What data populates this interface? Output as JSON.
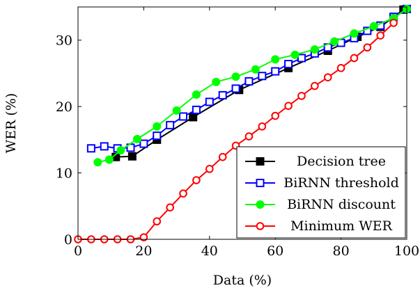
{
  "chart_data": {
    "type": "line",
    "title": "",
    "xlabel": "Data (%)",
    "ylabel": "WER (%)",
    "xlim": [
      0,
      100
    ],
    "ylim": [
      0,
      35
    ],
    "xticks": [
      0,
      20,
      40,
      60,
      80,
      100
    ],
    "yticks": [
      0,
      10,
      20,
      30
    ],
    "grid": false,
    "legend_position": "bottom-right",
    "series": [
      {
        "name": "Decision tree",
        "color": "#000000",
        "marker": "filled-square",
        "x": [
          11.5,
          16.5,
          24,
          35,
          49,
          64,
          76,
          85,
          92,
          96,
          99
        ],
        "y": [
          12.4,
          12.5,
          15.0,
          18.4,
          22.5,
          25.8,
          28.4,
          30.5,
          32.0,
          33.5,
          34.6
        ]
      },
      {
        "name": "BiRNN threshold",
        "color": "#0000ff",
        "marker": "open-square",
        "x": [
          4,
          8,
          12,
          16,
          20,
          24,
          28,
          32,
          36,
          40,
          44,
          48,
          52,
          56,
          60,
          64,
          68,
          72,
          76,
          80,
          84,
          88,
          92,
          96,
          100
        ],
        "y": [
          13.7,
          14.0,
          13.7,
          13.8,
          14.4,
          15.6,
          17.2,
          18.5,
          19.5,
          20.7,
          21.7,
          22.7,
          23.8,
          24.6,
          25.3,
          26.4,
          27.3,
          28.0,
          28.9,
          29.6,
          30.3,
          31.4,
          32.2,
          33.5,
          34.7
        ]
      },
      {
        "name": "BiRNN discount",
        "color": "#00ff00",
        "marker": "filled-circle",
        "x": [
          6,
          9.5,
          13,
          18,
          24,
          30,
          36,
          42,
          48,
          54,
          60,
          66,
          72,
          78,
          84,
          90,
          96,
          100
        ],
        "y": [
          11.6,
          12.0,
          13.4,
          15.1,
          17.0,
          19.4,
          21.8,
          23.7,
          24.5,
          25.6,
          27.1,
          27.8,
          28.6,
          29.8,
          31.0,
          32.1,
          33.3,
          34.7
        ]
      },
      {
        "name": "Minimum WER",
        "color": "#ff0000",
        "marker": "open-circle",
        "x": [
          0,
          4,
          8,
          12,
          16,
          20,
          24,
          28,
          32,
          36,
          40,
          44,
          48,
          52,
          56,
          60,
          64,
          68,
          72,
          76,
          80,
          84,
          88,
          92,
          96
        ],
        "y": [
          0,
          0,
          0,
          0,
          0,
          0.3,
          2.7,
          4.8,
          6.9,
          8.9,
          10.6,
          12.4,
          14.1,
          15.5,
          17.0,
          18.6,
          20.1,
          21.6,
          23.1,
          24.4,
          25.8,
          27.3,
          28.9,
          30.7,
          32.6
        ]
      }
    ]
  }
}
